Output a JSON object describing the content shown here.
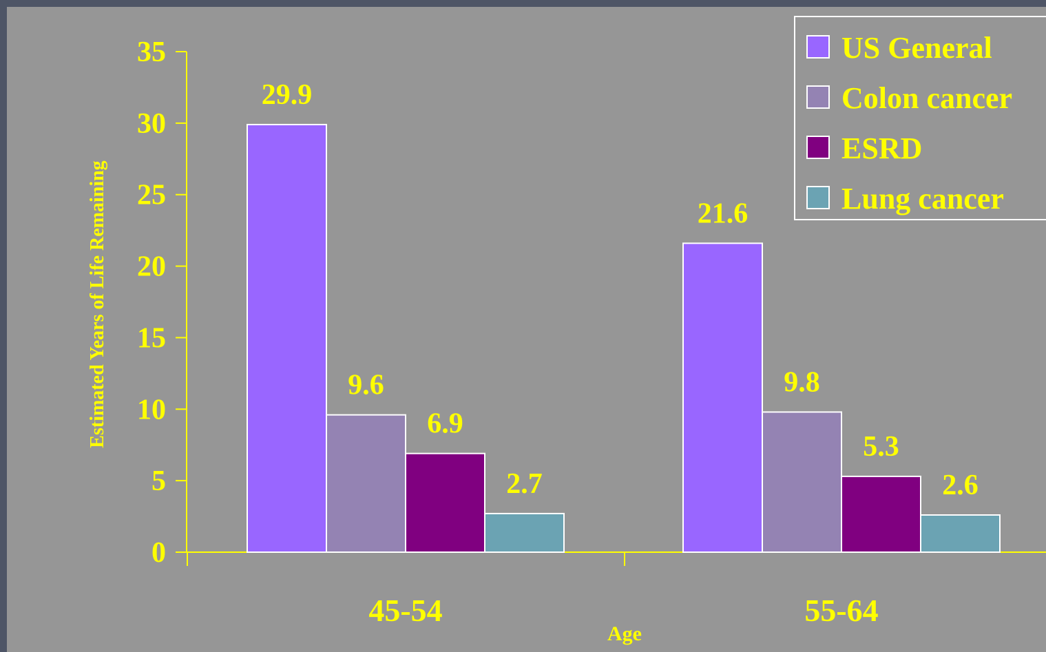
{
  "chart_data": {
    "type": "bar",
    "categories": [
      "45-54",
      "55-64"
    ],
    "series": [
      {
        "name": "US General",
        "values": [
          29.9,
          21.6
        ],
        "color": "#9966ff"
      },
      {
        "name": "Colon cancer",
        "values": [
          9.6,
          9.8
        ],
        "color": "#9483b3"
      },
      {
        "name": "ESRD",
        "values": [
          6.9,
          5.3
        ],
        "color": "#800080"
      },
      {
        "name": "Lung cancer",
        "values": [
          2.7,
          2.6
        ],
        "color": "#6ba3b3"
      }
    ],
    "data_labels": [
      [
        "29.9",
        "9.6",
        "6.9",
        "2.7"
      ],
      [
        "21.6",
        "9.8",
        "5.3",
        "2.6"
      ]
    ],
    "title": "",
    "xlabel": "Age",
    "ylabel": "Estimated Years of Life Remaining",
    "ylim": [
      0,
      35
    ],
    "yticks": [
      0,
      5,
      10,
      15,
      20,
      25,
      30,
      35
    ],
    "ytick_labels": [
      "0",
      "5",
      "10",
      "15",
      "20",
      "25",
      "30",
      "35"
    ],
    "grid": false,
    "legend_position": "top-right",
    "colors": {
      "background": "#969696",
      "frame": "#4e5566",
      "text": "#ffff00",
      "axis": "#ffff00",
      "bar_outline": "#ffffff"
    }
  }
}
